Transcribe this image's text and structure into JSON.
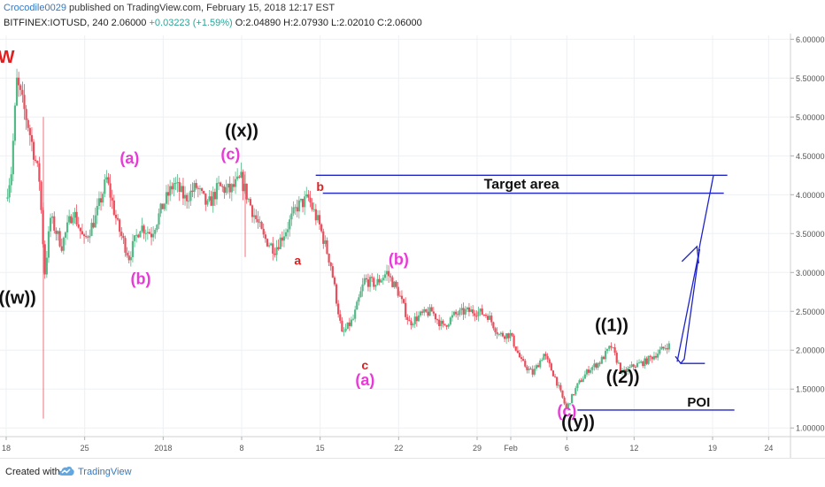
{
  "header": {
    "author": "Crocodile0029",
    "published_text": "published on TradingView.com, February 15, 2018 12:17 EST",
    "symbol": "BITFINEX:IOTUSD, 240",
    "last": "2.06000",
    "change": "+0.03223 (+1.59%)",
    "open": "O:2.04890",
    "high": "H:2.07930",
    "low": "L:2.02010",
    "close": "C:2.06000"
  },
  "footer": {
    "created_with": "Created with",
    "brand": "TradingView"
  },
  "chart_data": {
    "type": "candlestick",
    "ylim": [
      0.9,
      6.05
    ],
    "y_ticks": [
      "6.00000",
      "5.50000",
      "5.00000",
      "4.50000",
      "4.00000",
      "3.50000",
      "3.00000",
      "2.50000",
      "2.00000",
      "1.50000",
      "1.00000"
    ],
    "x_ticks": [
      {
        "label": "18",
        "date": "2017-12-18"
      },
      {
        "label": "25",
        "date": "2017-12-25"
      },
      {
        "label": "2018",
        "date": "2018-01-01"
      },
      {
        "label": "8",
        "date": "2018-01-08"
      },
      {
        "label": "15",
        "date": "2018-01-15"
      },
      {
        "label": "22",
        "date": "2018-01-22"
      },
      {
        "label": "29",
        "date": "2018-01-29"
      },
      {
        "label": "Feb",
        "date": "2018-02-01"
      },
      {
        "label": "6",
        "date": "2018-02-06"
      },
      {
        "label": "12",
        "date": "2018-02-12"
      },
      {
        "label": "19",
        "date": "2018-02-19"
      },
      {
        "label": "24",
        "date": "2018-02-24"
      }
    ],
    "price_path": [
      [
        "2017-12-18",
        3.95
      ],
      [
        "2017-12-18",
        4.3
      ],
      [
        "2017-12-19",
        5.45
      ],
      [
        "2017-12-20",
        4.9
      ],
      [
        "2017-12-21",
        4.2
      ],
      [
        "2017-12-21",
        3.0
      ],
      [
        "2017-12-22",
        3.7
      ],
      [
        "2017-12-23",
        3.35
      ],
      [
        "2017-12-24",
        3.8
      ],
      [
        "2017-12-25",
        3.4
      ],
      [
        "2017-12-26",
        3.7
      ],
      [
        "2017-12-27",
        4.2
      ],
      [
        "2017-12-28",
        3.6
      ],
      [
        "2017-12-29",
        3.2
      ],
      [
        "2017-12-30",
        3.6
      ],
      [
        "2017-12-31",
        3.5
      ],
      [
        "2018-01-01",
        3.85
      ],
      [
        "2018-01-02",
        4.15
      ],
      [
        "2018-01-03",
        3.95
      ],
      [
        "2018-01-04",
        4.1
      ],
      [
        "2018-01-05",
        3.85
      ],
      [
        "2018-01-06",
        4.1
      ],
      [
        "2018-01-07",
        4.05
      ],
      [
        "2018-01-08",
        4.2
      ],
      [
        "2018-01-09",
        3.8
      ],
      [
        "2018-01-10",
        3.45
      ],
      [
        "2018-01-11",
        3.3
      ],
      [
        "2018-01-12",
        3.55
      ],
      [
        "2018-01-13",
        3.85
      ],
      [
        "2018-01-14",
        3.95
      ],
      [
        "2018-01-15",
        3.6
      ],
      [
        "2018-01-16",
        3.1
      ],
      [
        "2018-01-17",
        2.2
      ],
      [
        "2018-01-18",
        2.4
      ],
      [
        "2018-01-19",
        2.9
      ],
      [
        "2018-01-20",
        2.85
      ],
      [
        "2018-01-21",
        3.0
      ],
      [
        "2018-01-22",
        2.75
      ],
      [
        "2018-01-23",
        2.35
      ],
      [
        "2018-01-24",
        2.45
      ],
      [
        "2018-01-25",
        2.5
      ],
      [
        "2018-01-26",
        2.3
      ],
      [
        "2018-01-27",
        2.45
      ],
      [
        "2018-01-28",
        2.5
      ],
      [
        "2018-01-29",
        2.5
      ],
      [
        "2018-01-30",
        2.45
      ],
      [
        "2018-01-31",
        2.2
      ],
      [
        "2018-02-01",
        2.2
      ],
      [
        "2018-02-02",
        1.85
      ],
      [
        "2018-02-03",
        1.7
      ],
      [
        "2018-02-04",
        1.95
      ],
      [
        "2018-02-05",
        1.65
      ],
      [
        "2018-02-06",
        1.25
      ],
      [
        "2018-02-07",
        1.55
      ],
      [
        "2018-02-08",
        1.75
      ],
      [
        "2018-02-09",
        1.85
      ],
      [
        "2018-02-10",
        2.05
      ],
      [
        "2018-02-11",
        1.7
      ],
      [
        "2018-02-12",
        1.8
      ],
      [
        "2018-02-13",
        1.85
      ],
      [
        "2018-02-14",
        1.95
      ],
      [
        "2018-02-15",
        2.06
      ]
    ],
    "wave_labels": [
      {
        "text": "W",
        "date": "2017-12-18",
        "y": 5.7,
        "color": "#e02020"
      },
      {
        "text": "((w))",
        "date": "2017-12-19",
        "y": 2.6,
        "color": "#111111"
      },
      {
        "text": "(a)",
        "date": "2017-12-29",
        "y": 4.4,
        "color": "#e83ad6"
      },
      {
        "text": "(b)",
        "date": "2017-12-30",
        "y": 2.85,
        "color": "#e83ad6"
      },
      {
        "text": "((x))",
        "date": "2018-01-08",
        "y": 4.75,
        "color": "#111111"
      },
      {
        "text": "(c)",
        "date": "2018-01-07",
        "y": 4.45,
        "color": "#e83ad6"
      },
      {
        "text": "a",
        "date": "2018-01-13",
        "y": 3.1,
        "color": "#e02020"
      },
      {
        "text": "b",
        "date": "2018-01-15",
        "y": 4.05,
        "color": "#e02020"
      },
      {
        "text": "c",
        "date": "2018-01-19",
        "y": 1.75,
        "color": "#e02020"
      },
      {
        "text": "(a)",
        "date": "2018-01-19",
        "y": 1.55,
        "color": "#e83ad6"
      },
      {
        "text": "(b)",
        "date": "2018-01-22",
        "y": 3.1,
        "color": "#e83ad6"
      },
      {
        "text": "(c)",
        "date": "2018-02-06",
        "y": 1.15,
        "color": "#e83ad6"
      },
      {
        "text": "((y))",
        "date": "2018-02-07",
        "y": 1.0,
        "color": "#111111"
      },
      {
        "text": "((1))",
        "date": "2018-02-10",
        "y": 2.25,
        "color": "#111111"
      },
      {
        "text": "((2))",
        "date": "2018-02-11",
        "y": 1.58,
        "color": "#111111"
      }
    ],
    "annotations": {
      "target_label": "Target area",
      "poi_label": "POI",
      "target_top": 4.25,
      "target_bottom": 4.02,
      "poi_level": 1.23,
      "line_color": "#1f24c9"
    }
  }
}
